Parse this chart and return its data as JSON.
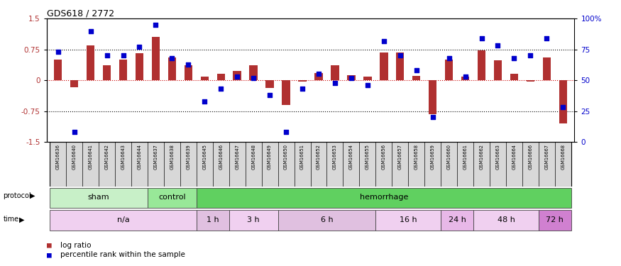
{
  "title": "GDS618 / 2772",
  "samples": [
    "GSM16636",
    "GSM16640",
    "GSM16641",
    "GSM16642",
    "GSM16643",
    "GSM16644",
    "GSM16637",
    "GSM16638",
    "GSM16639",
    "GSM16645",
    "GSM16646",
    "GSM16647",
    "GSM16648",
    "GSM16649",
    "GSM16650",
    "GSM16651",
    "GSM16652",
    "GSM16653",
    "GSM16654",
    "GSM16655",
    "GSM16656",
    "GSM16657",
    "GSM16658",
    "GSM16659",
    "GSM16660",
    "GSM16661",
    "GSM16662",
    "GSM16663",
    "GSM16664",
    "GSM16666",
    "GSM16667",
    "GSM16668"
  ],
  "log_ratio": [
    0.5,
    -0.17,
    0.85,
    0.37,
    0.5,
    0.65,
    1.05,
    0.55,
    0.37,
    0.08,
    0.15,
    0.22,
    0.37,
    -0.18,
    -0.6,
    -0.03,
    0.18,
    0.37,
    0.13,
    0.08,
    0.68,
    0.68,
    0.1,
    -0.82,
    0.5,
    0.08,
    0.72,
    0.48,
    0.15,
    -0.03,
    0.55,
    -1.05
  ],
  "pct_rank": [
    73,
    8,
    90,
    70,
    70,
    77,
    95,
    68,
    63,
    33,
    43,
    53,
    52,
    38,
    8,
    43,
    55,
    48,
    52,
    46,
    82,
    70,
    58,
    20,
    68,
    53,
    84,
    78,
    68,
    70,
    84,
    28
  ],
  "bar_color": "#b03030",
  "dot_color": "#0000cc",
  "protocol_groups": [
    {
      "label": "sham",
      "start": 0,
      "end": 6,
      "color": "#c8f0c8"
    },
    {
      "label": "control",
      "start": 6,
      "end": 9,
      "color": "#98e898"
    },
    {
      "label": "hemorrhage",
      "start": 9,
      "end": 32,
      "color": "#60d060"
    }
  ],
  "time_groups": [
    {
      "label": "n/a",
      "start": 0,
      "end": 9,
      "color": "#f0d0f0"
    },
    {
      "label": "1 h",
      "start": 9,
      "end": 11,
      "color": "#e0c0e0"
    },
    {
      "label": "3 h",
      "start": 11,
      "end": 14,
      "color": "#f0d0f0"
    },
    {
      "label": "6 h",
      "start": 14,
      "end": 20,
      "color": "#e0c0e0"
    },
    {
      "label": "16 h",
      "start": 20,
      "end": 24,
      "color": "#f0d0f0"
    },
    {
      "label": "24 h",
      "start": 24,
      "end": 26,
      "color": "#e8b8e8"
    },
    {
      "label": "48 h",
      "start": 26,
      "end": 30,
      "color": "#f0d0f0"
    },
    {
      "label": "72 h",
      "start": 30,
      "end": 32,
      "color": "#d080d0"
    }
  ],
  "ylim_left": [
    -1.5,
    1.5
  ],
  "ylim_right": [
    0,
    100
  ],
  "yticks_left": [
    -1.5,
    -0.75,
    0.0,
    0.75,
    1.5
  ],
  "yticks_right": [
    0,
    25,
    50,
    75,
    100
  ],
  "hlines": [
    0.75,
    0.0,
    -0.75
  ],
  "background_color": "#ffffff",
  "label_bg_color": "#d8d8d8"
}
